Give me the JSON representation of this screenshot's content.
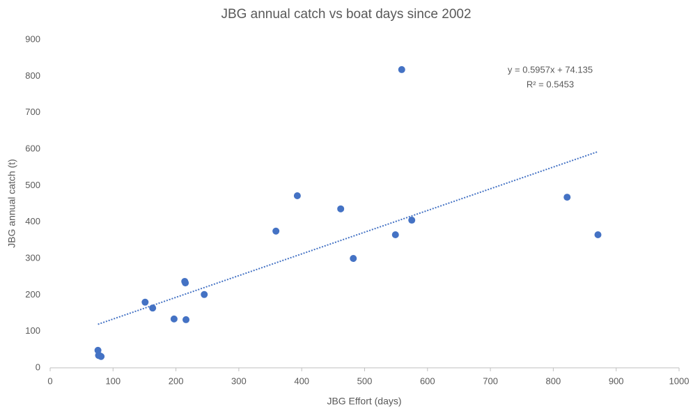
{
  "chart_data": {
    "type": "scatter",
    "title": "JBG annual catch vs boat days since 2002",
    "x_label": "JBG Effort (days)",
    "y_label": "JBG annual catch (t)",
    "x": [
      76,
      77,
      81,
      79,
      151,
      163,
      197,
      214,
      215,
      216,
      245,
      359,
      393,
      462,
      482,
      549,
      559,
      575,
      822,
      871
    ],
    "values": [
      48,
      34,
      31,
      33,
      180,
      164,
      134,
      237,
      233,
      132,
      201,
      375,
      472,
      436,
      300,
      365,
      818,
      405,
      468,
      365
    ],
    "color": "#4472c4",
    "trendline": {
      "equation": "y = 0.5957x + 74.135",
      "r2_label": "R² = 0.5453",
      "slope": 0.5957,
      "intercept": 74.135
    },
    "xlim": [
      0,
      1000
    ],
    "xticks": [
      0,
      100,
      200,
      300,
      400,
      500,
      600,
      700,
      800,
      900,
      1000
    ],
    "ylim": [
      0,
      900
    ],
    "yticks": [
      0,
      100,
      200,
      300,
      400,
      500,
      600,
      700,
      800,
      900
    ],
    "grid": false
  }
}
